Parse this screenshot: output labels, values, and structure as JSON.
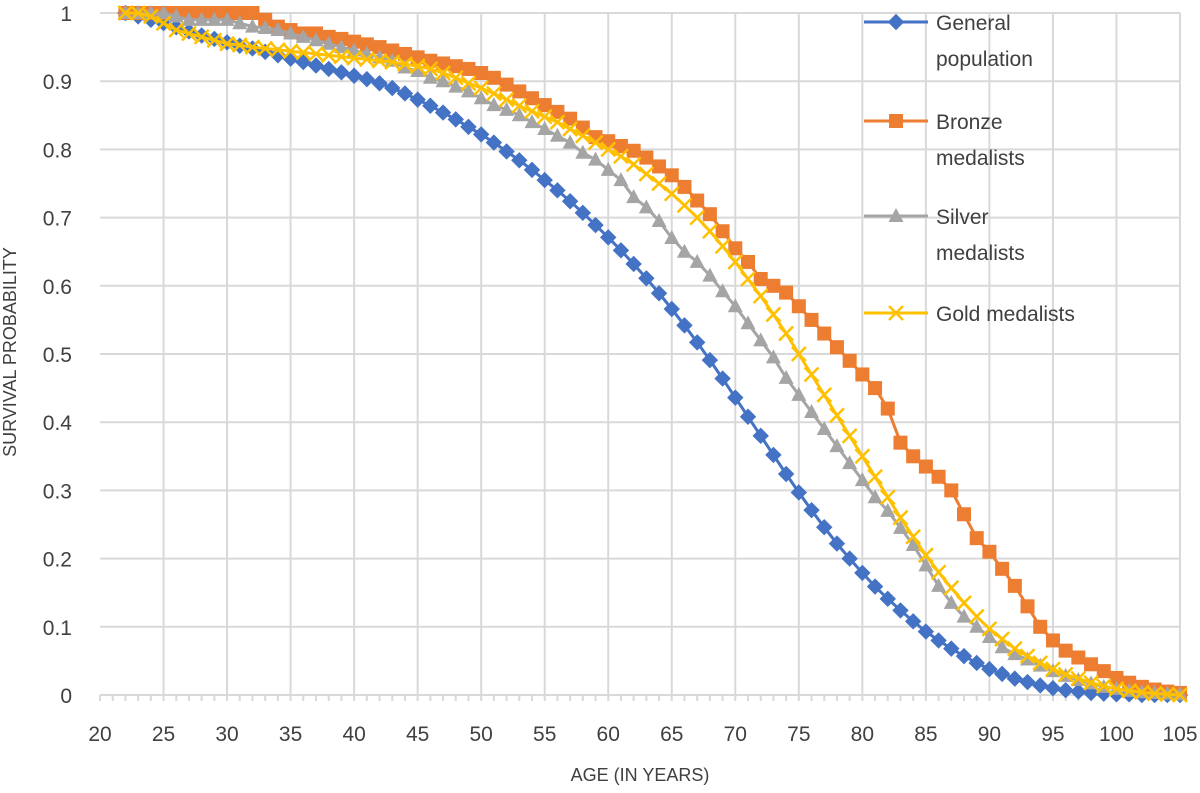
{
  "chart_data": {
    "type": "line",
    "title": "",
    "xlabel": "AGE (IN YEARS)",
    "ylabel": "SURVIVAL PROBABILITY",
    "xlim": [
      20,
      105
    ],
    "ylim": [
      0,
      1
    ],
    "xticks": [
      "20",
      "25",
      "30",
      "35",
      "40",
      "45",
      "50",
      "55",
      "60",
      "65",
      "70",
      "75",
      "80",
      "85",
      "90",
      "95",
      "100",
      "105"
    ],
    "yticks": [
      "0",
      "0.1",
      "0.2",
      "0.3",
      "0.4",
      "0.5",
      "0.6",
      "0.7",
      "0.8",
      "0.9",
      "1"
    ],
    "grid": true,
    "legend_position": "top-right",
    "x": [
      22,
      23,
      24,
      25,
      26,
      27,
      28,
      29,
      30,
      31,
      32,
      33,
      34,
      35,
      36,
      37,
      38,
      39,
      40,
      41,
      42,
      43,
      44,
      45,
      46,
      47,
      48,
      49,
      50,
      51,
      52,
      53,
      54,
      55,
      56,
      57,
      58,
      59,
      60,
      61,
      62,
      63,
      64,
      65,
      66,
      67,
      68,
      69,
      70,
      71,
      72,
      73,
      74,
      75,
      76,
      77,
      78,
      79,
      80,
      81,
      82,
      83,
      84,
      85,
      86,
      87,
      88,
      89,
      90,
      91,
      92,
      93,
      94,
      95,
      96,
      97,
      98,
      99,
      100,
      101,
      102,
      103,
      104,
      105
    ],
    "series": [
      {
        "name": "General population",
        "color": "#4472C4",
        "marker": "diamond",
        "values": [
          1.0,
          0.995,
          0.99,
          0.985,
          0.979,
          0.973,
          0.967,
          0.962,
          0.957,
          0.952,
          0.948,
          0.943,
          0.938,
          0.933,
          0.928,
          0.923,
          0.918,
          0.913,
          0.908,
          0.903,
          0.897,
          0.89,
          0.882,
          0.873,
          0.864,
          0.854,
          0.844,
          0.833,
          0.822,
          0.81,
          0.797,
          0.784,
          0.77,
          0.755,
          0.74,
          0.724,
          0.707,
          0.689,
          0.671,
          0.652,
          0.632,
          0.611,
          0.589,
          0.566,
          0.542,
          0.517,
          0.491,
          0.464,
          0.436,
          0.408,
          0.38,
          0.352,
          0.324,
          0.297,
          0.271,
          0.246,
          0.222,
          0.2,
          0.179,
          0.159,
          0.141,
          0.124,
          0.108,
          0.093,
          0.08,
          0.068,
          0.057,
          0.047,
          0.038,
          0.031,
          0.024,
          0.019,
          0.014,
          0.01,
          0.007,
          0.005,
          0.003,
          0.002,
          0.001,
          0.001,
          0.0,
          0.0,
          0.0,
          0.0
        ]
      },
      {
        "name": "Bronze medalists",
        "color": "#ED7D31",
        "marker": "square",
        "values": [
          1.0,
          1.0,
          1.0,
          1.0,
          1.0,
          1.0,
          1.0,
          1.0,
          1.0,
          1.0,
          1.0,
          0.99,
          0.98,
          0.975,
          0.97,
          0.97,
          0.965,
          0.962,
          0.958,
          0.954,
          0.95,
          0.945,
          0.94,
          0.935,
          0.93,
          0.926,
          0.922,
          0.918,
          0.912,
          0.905,
          0.895,
          0.885,
          0.875,
          0.865,
          0.855,
          0.845,
          0.832,
          0.818,
          0.812,
          0.805,
          0.798,
          0.788,
          0.775,
          0.762,
          0.745,
          0.725,
          0.705,
          0.68,
          0.655,
          0.635,
          0.61,
          0.6,
          0.59,
          0.57,
          0.55,
          0.53,
          0.51,
          0.49,
          0.47,
          0.45,
          0.42,
          0.37,
          0.35,
          0.335,
          0.32,
          0.3,
          0.265,
          0.23,
          0.21,
          0.185,
          0.16,
          0.13,
          0.1,
          0.08,
          0.065,
          0.055,
          0.045,
          0.035,
          0.025,
          0.018,
          0.012,
          0.008,
          0.005,
          0.003
        ]
      },
      {
        "name": "Silver medalists",
        "color": "#A5A5A5",
        "marker": "triangle",
        "values": [
          1.0,
          1.0,
          1.0,
          1.0,
          0.995,
          0.99,
          0.99,
          0.99,
          0.99,
          0.985,
          0.98,
          0.978,
          0.975,
          0.97,
          0.965,
          0.96,
          0.955,
          0.95,
          0.945,
          0.94,
          0.935,
          0.93,
          0.92,
          0.915,
          0.905,
          0.9,
          0.892,
          0.885,
          0.875,
          0.865,
          0.858,
          0.85,
          0.84,
          0.83,
          0.82,
          0.81,
          0.795,
          0.785,
          0.77,
          0.755,
          0.73,
          0.715,
          0.695,
          0.67,
          0.65,
          0.635,
          0.615,
          0.592,
          0.57,
          0.545,
          0.52,
          0.495,
          0.465,
          0.44,
          0.415,
          0.39,
          0.365,
          0.34,
          0.315,
          0.29,
          0.27,
          0.245,
          0.22,
          0.19,
          0.16,
          0.135,
          0.115,
          0.1,
          0.085,
          0.07,
          0.06,
          0.052,
          0.043,
          0.035,
          0.028,
          0.022,
          0.017,
          0.012,
          0.009,
          0.006,
          0.004,
          0.003,
          0.002,
          0.001
        ]
      },
      {
        "name": "Gold medalists",
        "color": "#FFC000",
        "marker": "x",
        "values": [
          1.0,
          1.0,
          0.995,
          0.985,
          0.975,
          0.97,
          0.965,
          0.96,
          0.955,
          0.953,
          0.95,
          0.948,
          0.946,
          0.944,
          0.942,
          0.94,
          0.938,
          0.936,
          0.934,
          0.932,
          0.93,
          0.928,
          0.925,
          0.922,
          0.918,
          0.912,
          0.905,
          0.897,
          0.89,
          0.882,
          0.873,
          0.864,
          0.856,
          0.848,
          0.84,
          0.83,
          0.82,
          0.81,
          0.8,
          0.79,
          0.778,
          0.764,
          0.75,
          0.735,
          0.718,
          0.7,
          0.68,
          0.658,
          0.635,
          0.61,
          0.585,
          0.558,
          0.53,
          0.5,
          0.47,
          0.44,
          0.41,
          0.38,
          0.35,
          0.32,
          0.29,
          0.26,
          0.232,
          0.205,
          0.18,
          0.157,
          0.135,
          0.115,
          0.097,
          0.082,
          0.068,
          0.057,
          0.047,
          0.038,
          0.03,
          0.024,
          0.018,
          0.013,
          0.009,
          0.006,
          0.004,
          0.002,
          0.001,
          0.0
        ]
      }
    ]
  }
}
